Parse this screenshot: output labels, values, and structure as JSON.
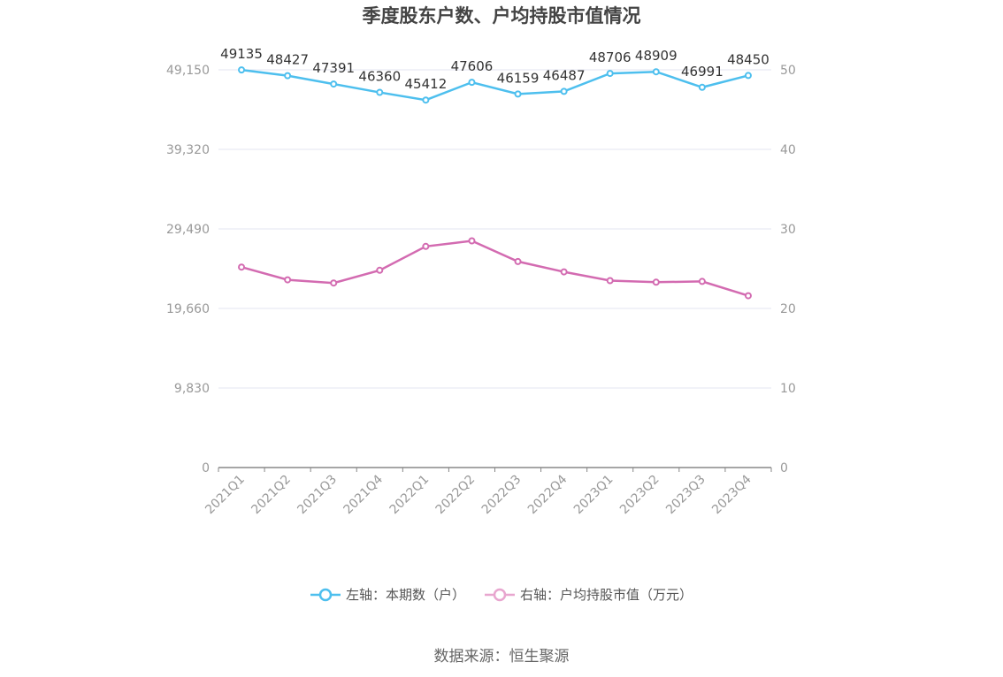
{
  "title": "季度股东户数、户均持股市值情况",
  "source": "数据来源：恒生聚源",
  "legend": [
    {
      "label": "左轴：本期数（户）",
      "color": "#4dbfee"
    },
    {
      "label": "右轴：户均持股市值（万元）",
      "color": "#e8a6cf"
    }
  ],
  "chart_data": {
    "type": "line",
    "categories": [
      "2021Q1",
      "2021Q2",
      "2021Q3",
      "2021Q4",
      "2022Q1",
      "2022Q2",
      "2022Q3",
      "2022Q4",
      "2023Q1",
      "2023Q2",
      "2023Q3",
      "2023Q4"
    ],
    "left_axis": {
      "ticks": [
        "0",
        "9,830",
        "19,660",
        "29,490",
        "39,320",
        "49,150"
      ],
      "ylim": [
        0,
        49150
      ]
    },
    "right_axis": {
      "ticks": [
        "0",
        "10",
        "20",
        "30",
        "40",
        "50"
      ],
      "ylim": [
        0,
        50
      ]
    },
    "series": [
      {
        "name": "左轴：本期数（户）",
        "axis": "left",
        "color": "#4dbfee",
        "values": [
          49135,
          48427,
          47391,
          46360,
          45412,
          47606,
          46159,
          46487,
          48706,
          48909,
          46991,
          48450
        ],
        "labels": [
          "49135",
          "48427",
          "47391",
          "46360",
          "45412",
          "47606",
          "46159",
          "46487",
          "48706",
          "48909",
          "46991",
          "48450"
        ]
      },
      {
        "name": "右轴：户均持股市值（万元）",
        "axis": "right",
        "color": "#d36bb1",
        "values": [
          25.2,
          23.6,
          23.2,
          24.8,
          27.8,
          28.5,
          25.9,
          24.6,
          23.5,
          23.3,
          23.4,
          21.6
        ]
      }
    ],
    "grid": true,
    "legend_position": "bottom"
  }
}
